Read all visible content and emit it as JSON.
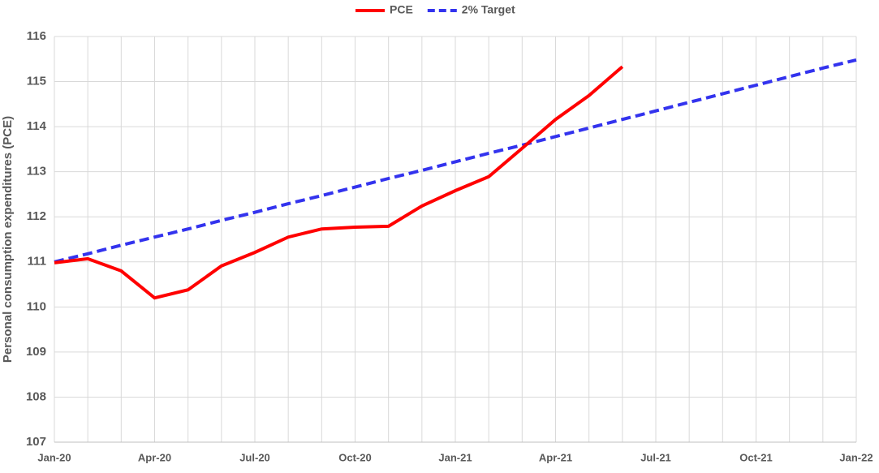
{
  "chart_data": {
    "type": "line",
    "y_label": "Personal consumption expenditures (PCE)",
    "categories": [
      "Jan-20",
      null,
      null,
      "Apr-20",
      null,
      null,
      "Jul-20",
      null,
      null,
      "Oct-20",
      null,
      null,
      "Jan-21",
      null,
      null,
      "Apr-21",
      null,
      null,
      "Jul-21",
      null,
      null,
      "Oct-21",
      null,
      null,
      "Jan-22"
    ],
    "series": [
      {
        "name": "PCE",
        "color": "#ff0000",
        "dash": false,
        "values": [
          110.98,
          111.07,
          110.8,
          110.2,
          110.38,
          110.91,
          111.21,
          111.55,
          111.73,
          111.77,
          111.79,
          112.24,
          112.58,
          112.89,
          113.52,
          114.16,
          114.69,
          115.33,
          null,
          null,
          null,
          null,
          null,
          null,
          null
        ]
      },
      {
        "name": "2% Target",
        "color": "#3333ee",
        "dash": true,
        "values": [
          111.0,
          111.18,
          111.37,
          111.55,
          111.73,
          111.92,
          112.1,
          112.29,
          112.47,
          112.66,
          112.85,
          113.03,
          113.22,
          113.41,
          113.59,
          113.78,
          113.97,
          114.16,
          114.35,
          114.54,
          114.73,
          114.92,
          115.11,
          115.3,
          115.48
        ]
      }
    ],
    "ylim": [
      107,
      116
    ],
    "yticks": [
      107,
      108,
      109,
      110,
      111,
      112,
      113,
      114,
      115,
      116
    ],
    "grid": true,
    "legend": "top"
  }
}
